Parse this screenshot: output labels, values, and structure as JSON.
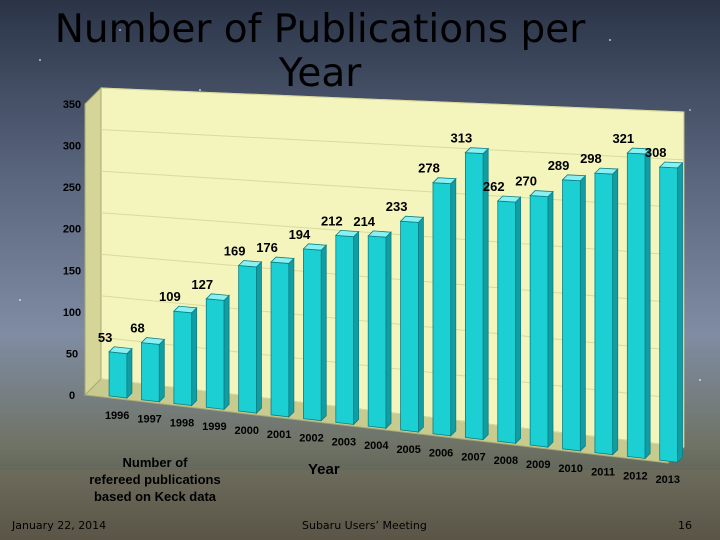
{
  "slide": {
    "title_line1": "Number of Publications per",
    "title_line2": "Year",
    "footer_date": "January 22, 2014",
    "footer_meeting": "Subaru Users’ Meeting",
    "footer_page": "16"
  },
  "chart_data": {
    "type": "bar",
    "title": "Number of Publications per Year",
    "categories": [
      "1996",
      "1997",
      "1998",
      "1999",
      "2000",
      "2001",
      "2002",
      "2003",
      "2004",
      "2005",
      "2006",
      "2007",
      "2008",
      "2009",
      "2010",
      "2011",
      "2012",
      "2013"
    ],
    "values": [
      53,
      68,
      109,
      127,
      169,
      176,
      194,
      212,
      214,
      233,
      278,
      313,
      262,
      270,
      289,
      298,
      321,
      308
    ],
    "xlabel": "Year",
    "ylabel": "",
    "note_lines": [
      "Number of",
      "refereed publications",
      "based on Keck data"
    ],
    "ylim": [
      0,
      350
    ],
    "yticks": [
      0,
      50,
      100,
      150,
      200,
      250,
      300,
      350
    ],
    "bar_color": "#1ccfd2",
    "plot_background": "#f4f5bd"
  }
}
